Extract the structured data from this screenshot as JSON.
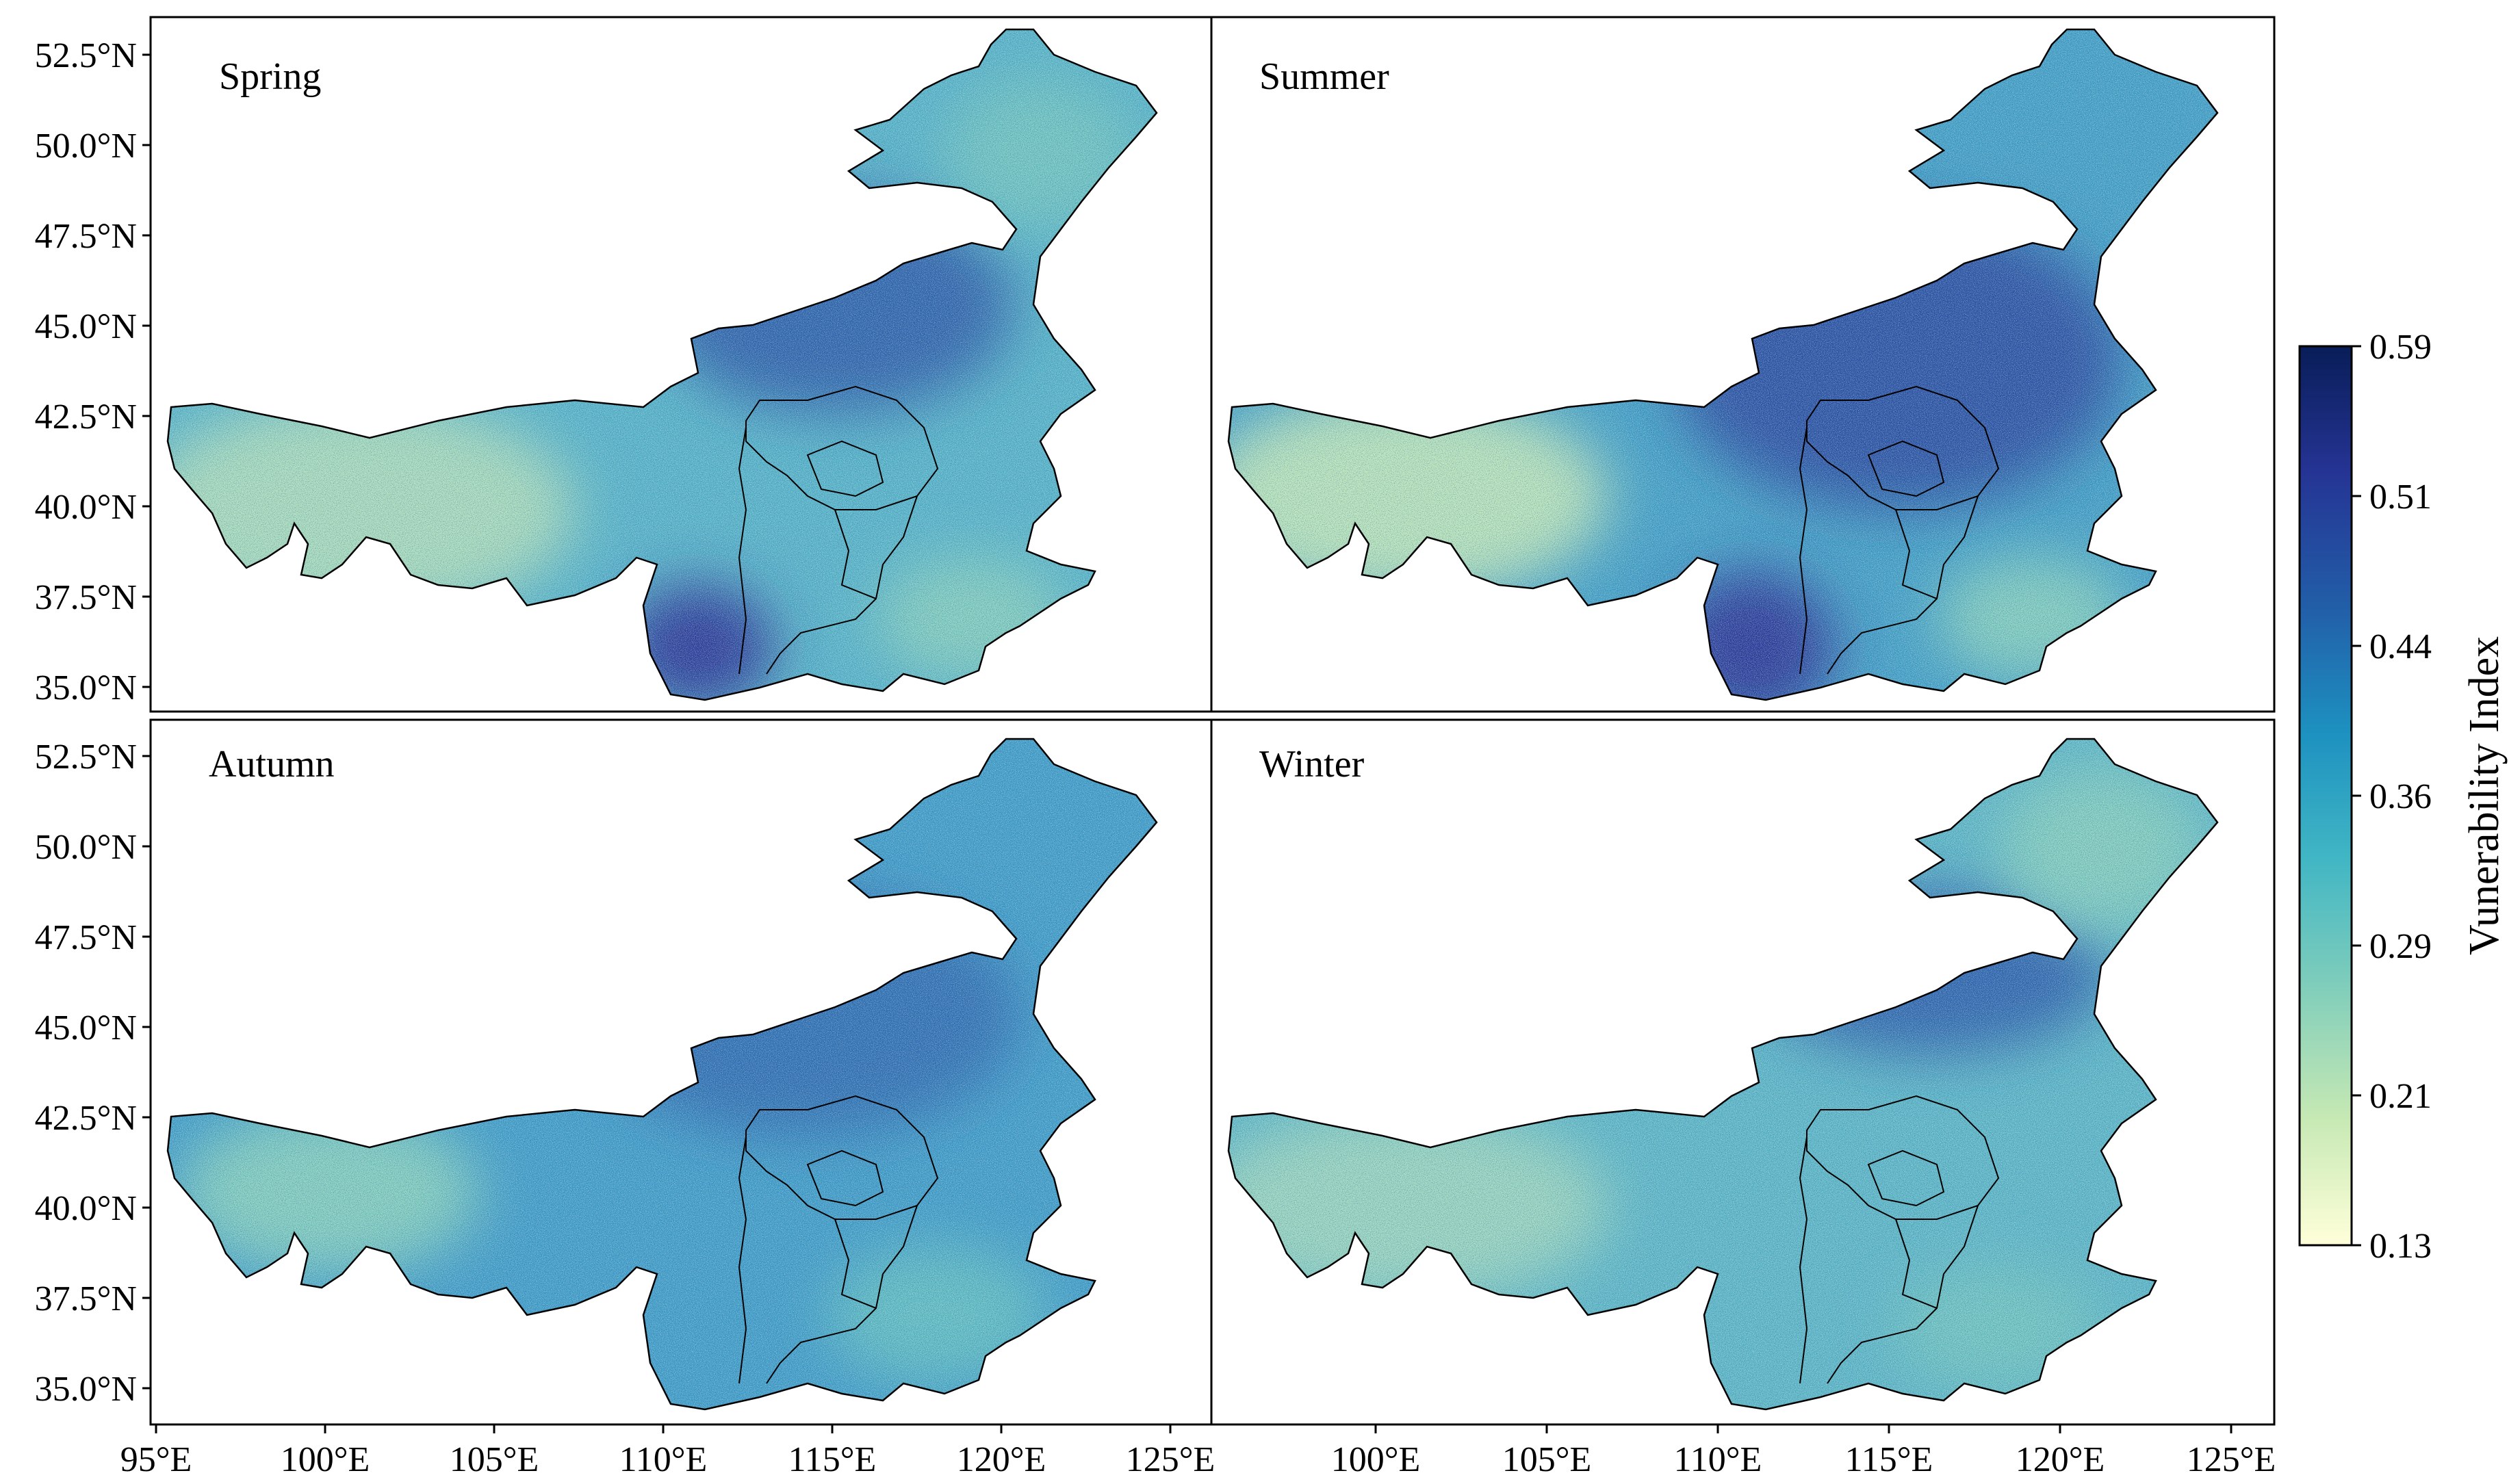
{
  "panels": [
    {
      "label": "Spring",
      "tone": "spring"
    },
    {
      "label": "Summer",
      "tone": "summer"
    },
    {
      "label": "Autumn",
      "tone": "autumn"
    },
    {
      "label": "Winter",
      "tone": "winter"
    }
  ],
  "y_ticks": [
    "52.5°N",
    "50.0°N",
    "47.5°N",
    "45.0°N",
    "42.5°N",
    "40.0°N",
    "37.5°N",
    "35.0°N"
  ],
  "x_ticks_left": [
    "95°E",
    "100°E",
    "105°E",
    "110°E",
    "115°E",
    "120°E",
    "125°E"
  ],
  "x_ticks_right": [
    "100°E",
    "105°E",
    "110°E",
    "115°E",
    "120°E",
    "125°E"
  ],
  "colorbar": {
    "label": "Vunerability Index",
    "ticks": [
      "0.59",
      "0.51",
      "0.44",
      "0.36",
      "0.29",
      "0.21",
      "0.13"
    ],
    "min": 0.13,
    "max": 0.59,
    "colors": [
      "#ffffd9",
      "#c7e9b4",
      "#7fcdbb",
      "#41b6c4",
      "#1d91c0",
      "#225ea8",
      "#253494",
      "#081d58"
    ]
  }
}
